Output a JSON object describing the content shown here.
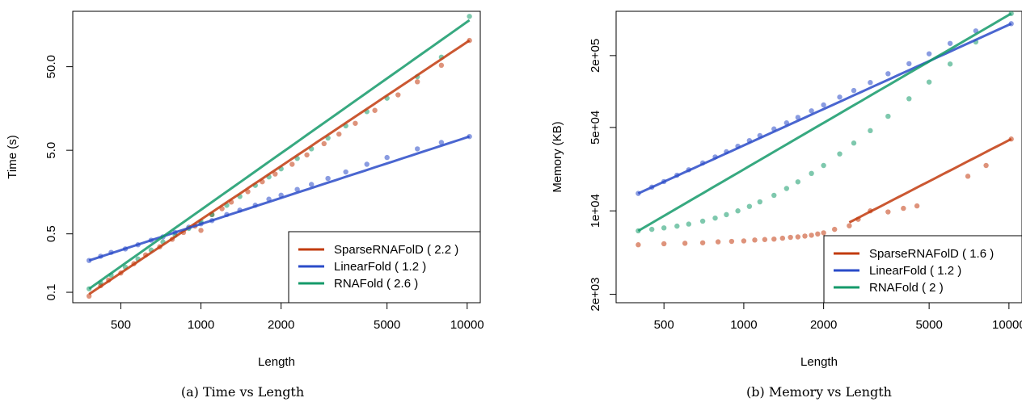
{
  "chart_data": [
    {
      "type": "scatter",
      "caption": "(a) Time vs Length",
      "xlabel": "Length",
      "ylabel": "Time (s)",
      "x_log": true,
      "y_log": true,
      "xlim": [
        330,
        11200
      ],
      "ylim": [
        0.075,
        230
      ],
      "xticks": [
        500,
        1000,
        2000,
        5000,
        10000
      ],
      "xtick_labels": [
        "500",
        "1000",
        "2000",
        "5000",
        "10000"
      ],
      "yticks": [
        0.1,
        0.5,
        5.0,
        50.0
      ],
      "ytick_labels": [
        "0.1",
        "0.5",
        "5.0",
        "50.0"
      ],
      "legend_position": "bottom-right",
      "series": [
        {
          "name": "SparseRNAFolD",
          "legend_label": "SparseRNAFolD ( 2.2 )",
          "color": "#c23b0e",
          "fit": [
            [
              380,
              0.095
            ],
            [
              10200,
              103
            ]
          ],
          "points": [
            [
              380,
              0.09
            ],
            [
              420,
              0.12
            ],
            [
              450,
              0.14
            ],
            [
              500,
              0.17
            ],
            [
              560,
              0.22
            ],
            [
              620,
              0.28
            ],
            [
              700,
              0.35
            ],
            [
              780,
              0.43
            ],
            [
              860,
              0.52
            ],
            [
              950,
              0.62
            ],
            [
              1000,
              0.55
            ],
            [
              1100,
              0.85
            ],
            [
              1200,
              1.0
            ],
            [
              1300,
              1.2
            ],
            [
              1500,
              1.6
            ],
            [
              1700,
              2.1
            ],
            [
              1900,
              2.6
            ],
            [
              2200,
              3.4
            ],
            [
              2500,
              4.4
            ],
            [
              2900,
              6.0
            ],
            [
              3300,
              7.8
            ],
            [
              3800,
              10.5
            ],
            [
              4500,
              15
            ],
            [
              5500,
              23
            ],
            [
              6500,
              33
            ],
            [
              8000,
              52
            ],
            [
              10200,
              103
            ]
          ]
        },
        {
          "name": "LinearFold",
          "legend_label": "LinearFold ( 1.2 )",
          "color": "#2a4bc8",
          "fit": [
            [
              380,
              0.24
            ],
            [
              10200,
              7.3
            ]
          ],
          "points": [
            [
              380,
              0.24
            ],
            [
              420,
              0.27
            ],
            [
              460,
              0.3
            ],
            [
              520,
              0.33
            ],
            [
              580,
              0.37
            ],
            [
              650,
              0.42
            ],
            [
              720,
              0.46
            ],
            [
              800,
              0.52
            ],
            [
              900,
              0.6
            ],
            [
              1000,
              0.66
            ],
            [
              1100,
              0.72
            ],
            [
              1250,
              0.85
            ],
            [
              1400,
              0.96
            ],
            [
              1600,
              1.1
            ],
            [
              1800,
              1.3
            ],
            [
              2000,
              1.45
            ],
            [
              2300,
              1.7
            ],
            [
              2600,
              1.95
            ],
            [
              3000,
              2.3
            ],
            [
              3500,
              2.75
            ],
            [
              4200,
              3.4
            ],
            [
              5000,
              4.1
            ],
            [
              6500,
              5.2
            ],
            [
              8000,
              6.2
            ],
            [
              10200,
              7.3
            ]
          ]
        },
        {
          "name": "RNAFold",
          "legend_label": "RNAFold ( 2.6 )",
          "color": "#149a6a",
          "fit": [
            [
              380,
              0.11
            ],
            [
              10200,
              180
            ]
          ],
          "points": [
            [
              380,
              0.11
            ],
            [
              420,
              0.13
            ],
            [
              460,
              0.16
            ],
            [
              520,
              0.2
            ],
            [
              580,
              0.25
            ],
            [
              650,
              0.32
            ],
            [
              720,
              0.4
            ],
            [
              800,
              0.48
            ],
            [
              900,
              0.58
            ],
            [
              1000,
              0.7
            ],
            [
              1100,
              0.85
            ],
            [
              1250,
              1.1
            ],
            [
              1400,
              1.4
            ],
            [
              1600,
              1.9
            ],
            [
              1800,
              2.4
            ],
            [
              2000,
              3.0
            ],
            [
              2300,
              4.0
            ],
            [
              2600,
              5.2
            ],
            [
              3000,
              7.0
            ],
            [
              3500,
              9.8
            ],
            [
              4200,
              14.5
            ],
            [
              5000,
              21
            ],
            [
              6500,
              38
            ],
            [
              8000,
              65
            ],
            [
              10200,
              200
            ]
          ]
        }
      ]
    },
    {
      "type": "scatter",
      "caption": "(b) Memory vs Length",
      "xlabel": "Length",
      "ylabel": "Memory (KB)",
      "x_log": true,
      "y_log": true,
      "xlim": [
        330,
        11200
      ],
      "ylim": [
        1700,
        470000
      ],
      "xticks": [
        500,
        1000,
        2000,
        5000,
        10000
      ],
      "xtick_labels": [
        "500",
        "1000",
        "2000",
        "5000",
        "10000"
      ],
      "yticks": [
        2000,
        10000,
        50000,
        200000
      ],
      "ytick_labels": [
        "2e+03",
        "1e+04",
        "5e+04",
        "2e+05"
      ],
      "legend_position": "bottom-right",
      "series": [
        {
          "name": "SparseRNAFolD",
          "legend_label": "SparseRNAFolD ( 1.6 )",
          "color": "#c23b0e",
          "fit": [
            [
              2500,
              8000
            ],
            [
              10200,
              40000
            ]
          ],
          "points": [
            [
              400,
              5200
            ],
            [
              500,
              5300
            ],
            [
              600,
              5350
            ],
            [
              700,
              5400
            ],
            [
              800,
              5500
            ],
            [
              900,
              5550
            ],
            [
              1000,
              5600
            ],
            [
              1100,
              5700
            ],
            [
              1200,
              5750
            ],
            [
              1300,
              5800
            ],
            [
              1400,
              5900
            ],
            [
              1500,
              6000
            ],
            [
              1600,
              6050
            ],
            [
              1700,
              6150
            ],
            [
              1800,
              6250
            ],
            [
              1900,
              6400
            ],
            [
              2000,
              6550
            ],
            [
              2200,
              7000
            ],
            [
              2500,
              7500
            ],
            [
              2700,
              8500
            ],
            [
              3000,
              10000
            ],
            [
              3500,
              9800
            ],
            [
              4000,
              10500
            ],
            [
              4500,
              11000
            ],
            [
              7000,
              19500
            ],
            [
              8200,
              24000
            ],
            [
              10200,
              40000
            ]
          ]
        },
        {
          "name": "LinearFold",
          "legend_label": "LinearFold ( 1.2 )",
          "color": "#2a4bc8",
          "fit": [
            [
              400,
              14000
            ],
            [
              10200,
              370000
            ]
          ],
          "points": [
            [
              400,
              14000
            ],
            [
              450,
              15800
            ],
            [
              500,
              17600
            ],
            [
              560,
              19900
            ],
            [
              620,
              22100
            ],
            [
              700,
              25200
            ],
            [
              780,
              28300
            ],
            [
              860,
              31300
            ],
            [
              950,
              34800
            ],
            [
              1050,
              38800
            ],
            [
              1150,
              42700
            ],
            [
              1300,
              48600
            ],
            [
              1450,
              54600
            ],
            [
              1600,
              60700
            ],
            [
              1800,
              68900
            ],
            [
              2000,
              77200
            ],
            [
              2300,
              89800
            ],
            [
              2600,
              102000
            ],
            [
              3000,
              119000
            ],
            [
              3500,
              141000
            ],
            [
              4200,
              171000
            ],
            [
              5000,
              207000
            ],
            [
              6000,
              253000
            ],
            [
              7500,
              322000
            ],
            [
              10200,
              370000
            ]
          ]
        },
        {
          "name": "RNAFold",
          "legend_label": "RNAFold ( 2 )",
          "color": "#149a6a",
          "fit": [
            [
              400,
              6800
            ],
            [
              10200,
              450000
            ]
          ],
          "points": [
            [
              400,
              6800
            ],
            [
              450,
              7000
            ],
            [
              500,
              7200
            ],
            [
              560,
              7450
            ],
            [
              620,
              7750
            ],
            [
              700,
              8200
            ],
            [
              780,
              8700
            ],
            [
              860,
              9300
            ],
            [
              950,
              10000
            ],
            [
              1050,
              10900
            ],
            [
              1150,
              11900
            ],
            [
              1300,
              13500
            ],
            [
              1450,
              15400
            ],
            [
              1600,
              17500
            ],
            [
              1800,
              20600
            ],
            [
              2000,
              24000
            ],
            [
              2300,
              30000
            ],
            [
              2600,
              37000
            ],
            [
              3000,
              47000
            ],
            [
              3500,
              62000
            ],
            [
              4200,
              87000
            ],
            [
              5000,
              120000
            ],
            [
              6000,
              170000
            ],
            [
              7500,
              260000
            ],
            [
              10200,
              450000
            ]
          ]
        }
      ]
    }
  ]
}
